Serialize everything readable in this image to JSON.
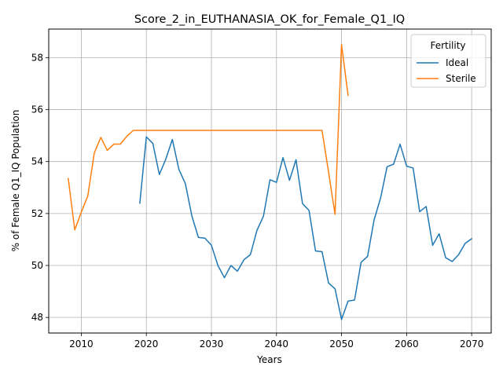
{
  "chart_data": {
    "type": "line",
    "title": "Score_2_in_EUTHANASIA_OK_for_Female_Q1_IQ",
    "xlabel": "Years",
    "ylabel": "% of Female Q1_IQ Population",
    "xlim": [
      2005,
      2073
    ],
    "ylim": [
      47.4,
      59.1
    ],
    "xticks": [
      2010,
      2020,
      2030,
      2040,
      2050,
      2060,
      2070
    ],
    "yticks": [
      48,
      50,
      52,
      54,
      56,
      58
    ],
    "grid": true,
    "legend": {
      "title": "Fertility",
      "placement": "top-right"
    },
    "series": [
      {
        "name": "Ideal",
        "color": "#1f77b4",
        "x": [
          2019,
          2020,
          2021,
          2022,
          2023,
          2024,
          2025,
          2026,
          2027,
          2028,
          2029,
          2030,
          2031,
          2032,
          2033,
          2034,
          2035,
          2036,
          2037,
          2038,
          2039,
          2040,
          2041,
          2042,
          2043,
          2044,
          2045,
          2046,
          2047,
          2048,
          2049,
          2050,
          2051,
          2052,
          2053,
          2054,
          2055,
          2056,
          2057,
          2058,
          2059,
          2060,
          2061,
          2062,
          2063,
          2064,
          2065,
          2066,
          2067,
          2068,
          2069,
          2070
        ],
        "y": [
          52.4,
          54.95,
          54.7,
          53.5,
          54.1,
          54.85,
          53.7,
          53.15,
          51.9,
          51.08,
          51.05,
          50.78,
          50.0,
          49.53,
          50.0,
          49.78,
          50.22,
          50.42,
          51.35,
          51.9,
          53.3,
          53.2,
          54.15,
          53.28,
          54.07,
          52.38,
          52.12,
          50.56,
          50.53,
          49.33,
          49.1,
          47.92,
          48.63,
          48.67,
          50.12,
          50.35,
          51.75,
          52.6,
          53.8,
          53.9,
          54.67,
          53.82,
          53.75,
          52.07,
          52.27,
          50.78,
          51.22,
          50.3,
          50.15,
          50.42,
          50.85,
          51.03
        ]
      },
      {
        "name": "Sterile",
        "color": "#ff7f0e",
        "x": [
          2008,
          2009,
          2010,
          2011,
          2012,
          2013,
          2014,
          2015,
          2016,
          2017,
          2018,
          2019,
          2020,
          2021,
          2022,
          2023,
          2024,
          2025,
          2026,
          2027,
          2028,
          2029,
          2030,
          2031,
          2032,
          2033,
          2034,
          2035,
          2036,
          2037,
          2038,
          2039,
          2040,
          2041,
          2042,
          2043,
          2044,
          2045,
          2046,
          2047,
          2048,
          2049,
          2050,
          2051
        ],
        "y": [
          53.35,
          51.37,
          52.05,
          52.67,
          54.33,
          54.93,
          54.43,
          54.67,
          54.67,
          54.97,
          55.2,
          55.2,
          55.2,
          55.2,
          55.2,
          55.2,
          55.2,
          55.2,
          55.2,
          55.2,
          55.2,
          55.2,
          55.2,
          55.2,
          55.2,
          55.2,
          55.2,
          55.2,
          55.2,
          55.2,
          55.2,
          55.2,
          55.2,
          55.2,
          55.2,
          55.2,
          55.2,
          55.2,
          55.2,
          55.2,
          53.6,
          51.97,
          58.5,
          56.55
        ]
      }
    ]
  }
}
